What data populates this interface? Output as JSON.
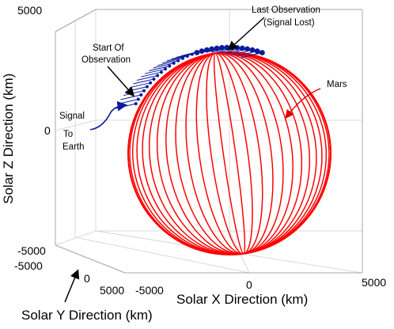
{
  "chart_data": {
    "type": "3d-sphere-plot",
    "axes": {
      "x": {
        "label": "Solar X Direction (km)",
        "ticks": [
          "-5000",
          "0",
          "5000"
        ],
        "range": [
          -5000,
          5000
        ]
      },
      "y": {
        "label": "Solar Y Direction (km)",
        "ticks": [
          "-5000",
          "0",
          "5000"
        ],
        "range": [
          -5000,
          5000
        ]
      },
      "z": {
        "label": "Solar Z Direction (km)",
        "ticks": [
          "-5000",
          "0",
          "5000"
        ],
        "range": [
          -5000,
          5000
        ]
      }
    },
    "grid": true,
    "body": {
      "name": "Mars",
      "color": "#ff0000"
    },
    "observation_color": "#0a1a9e"
  },
  "annotations": {
    "last_obs_line1": "Last Observation",
    "last_obs_line2": "(Signal Lost)",
    "start_obs_line1": "Start Of",
    "start_obs_line2": "Observation",
    "mars": "Mars",
    "signal_line1": "Signal",
    "signal_line2": "To",
    "signal_line3": "Earth"
  },
  "colors": {
    "mars": "#ff0000",
    "observation": "#0a1a9e",
    "signal_arrow": "#0a1a9e",
    "mars_arrow": "#e00000",
    "grid": "#d9d9d9",
    "axes_box": "#b0b0b0"
  }
}
